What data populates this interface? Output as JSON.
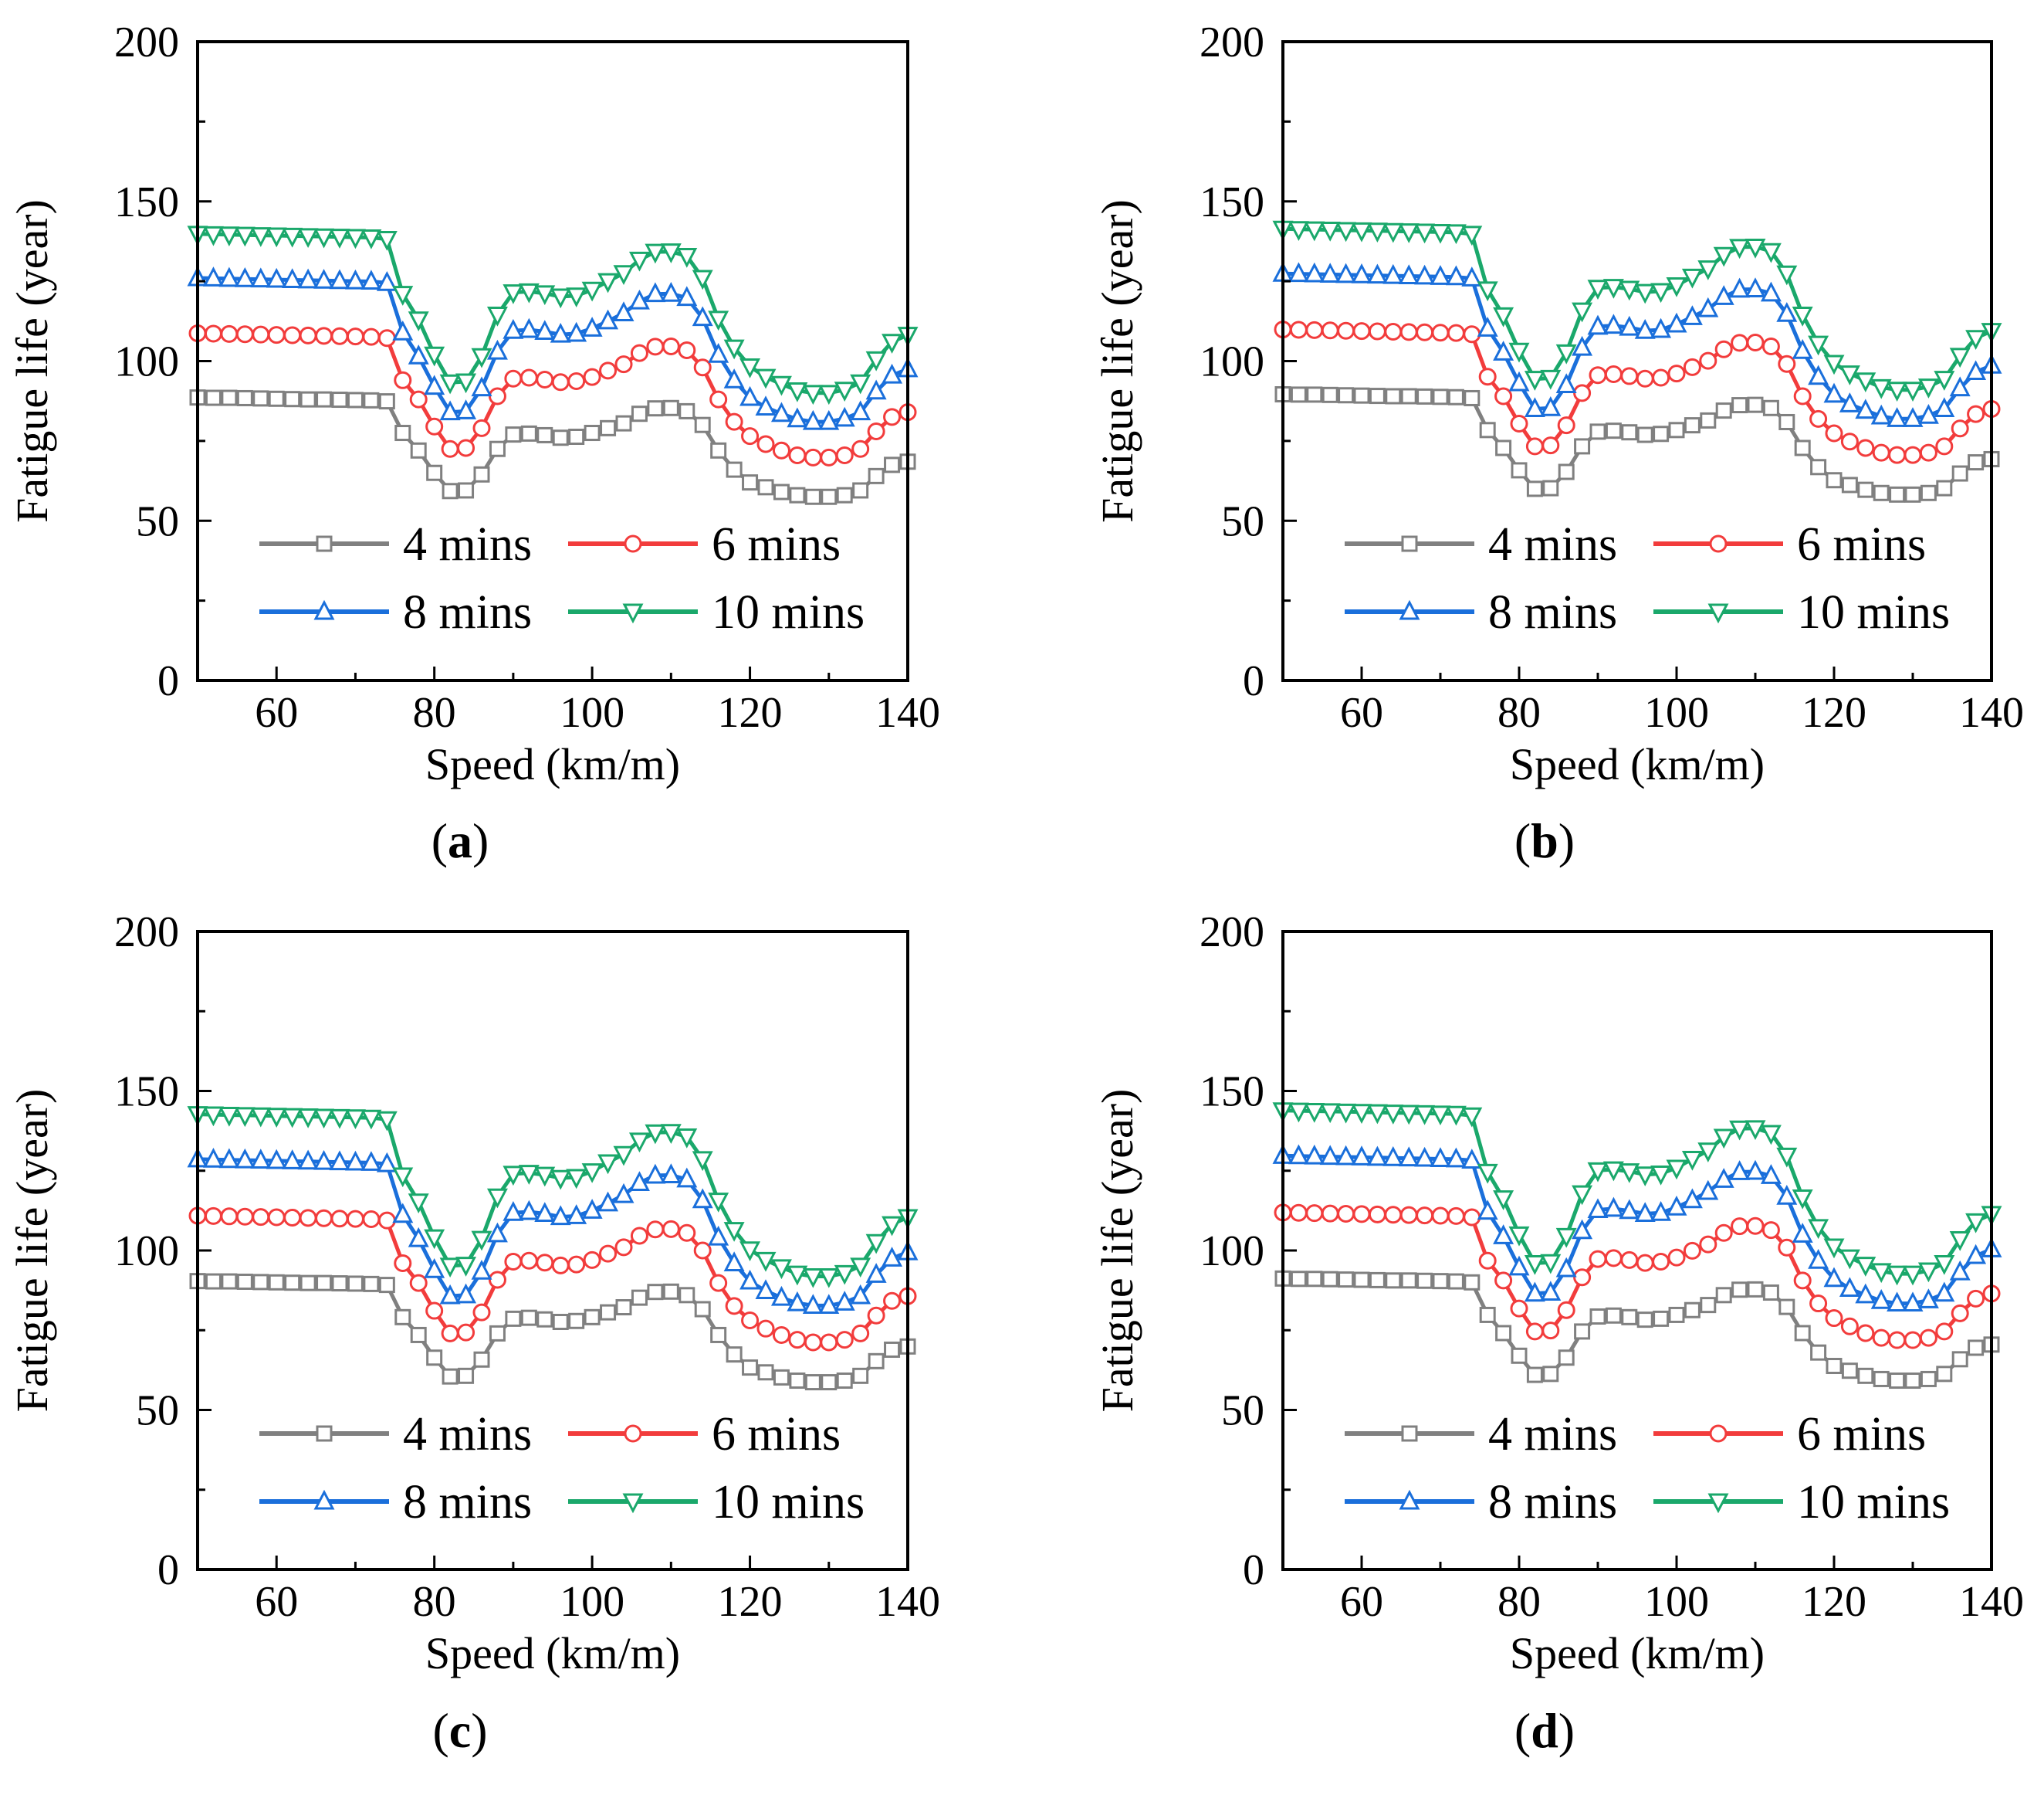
{
  "figure": {
    "legend_labels": [
      "4 mins",
      "6 mins",
      "8 mins",
      "10 mins"
    ],
    "series_colors": [
      "#808080",
      "#f23c3c",
      "#1a6fdb",
      "#1aa86b"
    ],
    "series_markers": [
      "square",
      "circle",
      "triangle-up",
      "triangle-down"
    ]
  },
  "chart_data": [
    {
      "panel": "a",
      "type": "line",
      "xlabel": "Speed (km/m)",
      "ylabel": "Fatigue life (year)",
      "xlim": [
        50,
        140
      ],
      "ylim": [
        0,
        200
      ],
      "xticks": [
        60,
        80,
        100,
        120,
        140
      ],
      "yticks": [
        0,
        50,
        100,
        150,
        200
      ],
      "legend_position": "lower-center",
      "x": [
        50,
        52,
        54,
        56,
        58,
        60,
        62,
        64,
        66,
        68,
        70,
        72,
        74,
        76,
        78,
        80,
        82,
        84,
        86,
        88,
        90,
        92,
        94,
        96,
        98,
        100,
        102,
        104,
        106,
        108,
        110,
        112,
        114,
        116,
        118,
        120,
        122,
        124,
        126,
        128,
        130,
        132,
        134,
        136,
        138,
        140
      ],
      "series": [
        {
          "name": "4 mins",
          "values": [
            88.6,
            88.5,
            88.5,
            88.4,
            88.3,
            88.2,
            88.1,
            88.0,
            88.0,
            87.9,
            87.8,
            87.7,
            87.4,
            77.5,
            72.0,
            65.0,
            59.3,
            59.5,
            64.5,
            72.5,
            77.0,
            77.3,
            76.8,
            76.0,
            76.3,
            77.5,
            79.0,
            80.5,
            83.5,
            85.2,
            85.3,
            84.3,
            80.0,
            72.0,
            66.0,
            62.0,
            60.5,
            59.0,
            58.0,
            57.5,
            57.5,
            58.0,
            59.5,
            64.0,
            67.5,
            68.5
          ]
        },
        {
          "name": "6 mins",
          "values": [
            108.7,
            108.6,
            108.5,
            108.4,
            108.3,
            108.2,
            108.1,
            108.0,
            107.9,
            107.8,
            107.7,
            107.6,
            107.2,
            94.0,
            88.0,
            79.5,
            72.5,
            72.8,
            79.0,
            89.0,
            94.5,
            94.8,
            94.2,
            93.4,
            93.7,
            95.0,
            97.0,
            99.0,
            102.5,
            104.5,
            104.6,
            103.4,
            98.0,
            88.0,
            81.0,
            76.5,
            74.0,
            72.0,
            70.5,
            69.8,
            69.8,
            70.5,
            72.5,
            78.0,
            82.5,
            84.0
          ]
        },
        {
          "name": "8 mins",
          "values": [
            126.0,
            125.9,
            125.8,
            125.7,
            125.6,
            125.5,
            125.4,
            125.3,
            125.2,
            125.1,
            125.0,
            124.9,
            124.5,
            109.0,
            101.5,
            92.0,
            84.0,
            84.3,
            91.5,
            103.0,
            109.5,
            109.8,
            109.2,
            108.3,
            108.6,
            110.2,
            112.5,
            115.0,
            118.7,
            121.0,
            121.1,
            119.8,
            113.5,
            102.0,
            94.0,
            88.5,
            85.5,
            83.5,
            81.8,
            81.0,
            81.0,
            82.0,
            84.0,
            90.5,
            95.5,
            97.5
          ]
        },
        {
          "name": "10 mins",
          "values": [
            139.8,
            139.7,
            139.6,
            139.5,
            139.4,
            139.3,
            139.2,
            139.1,
            139.0,
            138.9,
            138.8,
            138.7,
            138.2,
            121.0,
            113.0,
            102.0,
            93.3,
            93.6,
            101.5,
            114.5,
            121.5,
            121.8,
            121.2,
            120.2,
            120.5,
            122.3,
            125.0,
            127.5,
            131.7,
            134.2,
            134.3,
            132.9,
            126.0,
            113.2,
            104.2,
            98.3,
            95.0,
            92.8,
            90.8,
            90.0,
            90.0,
            91.0,
            93.3,
            100.5,
            106.0,
            108.2
          ]
        }
      ]
    },
    {
      "panel": "b",
      "type": "line",
      "xlabel": "Speed (km/m)",
      "ylabel": "Fatigue life (year)",
      "xlim": [
        50,
        140
      ],
      "ylim": [
        0,
        200
      ],
      "xticks": [
        60,
        80,
        100,
        120,
        140
      ],
      "yticks": [
        0,
        50,
        100,
        150,
        200
      ],
      "legend_position": "lower-center",
      "x": [
        50,
        52,
        54,
        56,
        58,
        60,
        62,
        64,
        66,
        68,
        70,
        72,
        74,
        76,
        78,
        80,
        82,
        84,
        86,
        88,
        90,
        92,
        94,
        96,
        98,
        100,
        102,
        104,
        106,
        108,
        110,
        112,
        114,
        116,
        118,
        120,
        122,
        124,
        126,
        128,
        130,
        132,
        134,
        136,
        138,
        140
      ],
      "series": [
        {
          "name": "4 mins",
          "values": [
            89.6,
            89.5,
            89.5,
            89.4,
            89.3,
            89.2,
            89.1,
            89.0,
            89.0,
            88.9,
            88.8,
            88.7,
            88.4,
            78.4,
            72.8,
            65.8,
            60.0,
            60.2,
            65.3,
            73.3,
            77.9,
            78.2,
            77.7,
            76.9,
            77.2,
            78.4,
            79.9,
            81.4,
            84.5,
            86.2,
            86.3,
            85.3,
            80.9,
            72.8,
            66.8,
            62.7,
            61.2,
            59.7,
            58.7,
            58.2,
            58.2,
            58.7,
            60.2,
            64.8,
            68.3,
            69.3
          ]
        },
        {
          "name": "6 mins",
          "values": [
            109.9,
            109.8,
            109.7,
            109.6,
            109.5,
            109.4,
            109.3,
            109.2,
            109.1,
            109.0,
            108.9,
            108.8,
            108.4,
            95.1,
            89.0,
            80.4,
            73.3,
            73.6,
            79.9,
            90.0,
            95.6,
            95.9,
            95.3,
            94.5,
            94.8,
            96.1,
            98.1,
            100.1,
            103.7,
            105.7,
            105.8,
            104.6,
            99.1,
            89.0,
            81.9,
            77.4,
            74.8,
            72.8,
            71.3,
            70.6,
            70.6,
            71.3,
            73.3,
            78.9,
            83.4,
            85.0
          ]
        },
        {
          "name": "8 mins",
          "values": [
            127.4,
            127.3,
            127.2,
            127.1,
            127.0,
            126.9,
            126.8,
            126.7,
            126.6,
            126.5,
            126.4,
            126.3,
            125.9,
            110.2,
            102.7,
            93.1,
            85.0,
            85.3,
            92.5,
            104.2,
            110.8,
            111.1,
            110.5,
            109.5,
            109.8,
            111.5,
            113.8,
            116.3,
            120.1,
            122.4,
            122.5,
            121.2,
            114.8,
            103.2,
            95.1,
            89.5,
            86.5,
            84.5,
            82.7,
            81.9,
            81.9,
            82.9,
            85.0,
            91.5,
            96.6,
            98.6
          ]
        },
        {
          "name": "10 mins",
          "values": [
            141.4,
            141.3,
            141.2,
            141.1,
            141.0,
            140.9,
            140.8,
            140.7,
            140.6,
            140.5,
            140.4,
            140.3,
            139.8,
            122.4,
            114.3,
            103.2,
            94.4,
            94.7,
            102.7,
            115.8,
            122.9,
            123.2,
            122.6,
            121.6,
            121.9,
            123.7,
            126.4,
            129.0,
            133.2,
            135.7,
            135.8,
            134.4,
            127.4,
            114.5,
            105.4,
            99.4,
            96.1,
            93.9,
            91.8,
            91.0,
            91.0,
            92.0,
            94.4,
            101.6,
            107.2,
            109.4
          ]
        }
      ]
    },
    {
      "panel": "c",
      "type": "line",
      "xlabel": "Speed (km/m)",
      "ylabel": "Fatigue life (year)",
      "xlim": [
        50,
        140
      ],
      "ylim": [
        0,
        200
      ],
      "xticks": [
        60,
        80,
        100,
        120,
        140
      ],
      "yticks": [
        0,
        50,
        100,
        150,
        200
      ],
      "legend_position": "lower-center",
      "x": [
        50,
        52,
        54,
        56,
        58,
        60,
        62,
        64,
        66,
        68,
        70,
        72,
        74,
        76,
        78,
        80,
        82,
        84,
        86,
        88,
        90,
        92,
        94,
        96,
        98,
        100,
        102,
        104,
        106,
        108,
        110,
        112,
        114,
        116,
        118,
        120,
        122,
        124,
        126,
        128,
        130,
        132,
        134,
        136,
        138,
        140
      ],
      "series": [
        {
          "name": "4 mins",
          "values": [
            90.4,
            90.3,
            90.3,
            90.2,
            90.1,
            90.0,
            89.9,
            89.8,
            89.8,
            89.7,
            89.6,
            89.5,
            89.2,
            79.1,
            73.5,
            66.4,
            60.5,
            60.7,
            65.8,
            74.0,
            78.6,
            78.9,
            78.4,
            77.6,
            77.9,
            79.1,
            80.6,
            82.2,
            85.2,
            87.0,
            87.1,
            86.0,
            81.6,
            73.5,
            67.4,
            63.3,
            61.8,
            60.2,
            59.2,
            58.7,
            58.7,
            59.2,
            60.7,
            65.3,
            68.9,
            69.9
          ]
        },
        {
          "name": "6 mins",
          "values": [
            110.9,
            110.8,
            110.7,
            110.6,
            110.5,
            110.4,
            110.3,
            110.2,
            110.1,
            110.0,
            109.9,
            109.8,
            109.4,
            96.0,
            89.8,
            81.1,
            74.0,
            74.3,
            80.6,
            90.8,
            96.5,
            96.8,
            96.2,
            95.3,
            95.6,
            97.0,
            99.0,
            101.0,
            104.6,
            106.6,
            106.7,
            105.5,
            100.0,
            89.8,
            82.6,
            78.1,
            75.5,
            73.5,
            72.0,
            71.2,
            71.2,
            72.0,
            74.0,
            79.6,
            84.2,
            85.7
          ]
        },
        {
          "name": "8 mins",
          "values": [
            128.6,
            128.5,
            128.4,
            128.3,
            128.2,
            128.1,
            128.0,
            127.9,
            127.8,
            127.7,
            127.6,
            127.5,
            127.1,
            111.2,
            103.6,
            93.9,
            85.7,
            86.0,
            93.4,
            105.1,
            111.8,
            112.1,
            111.5,
            110.5,
            110.8,
            112.5,
            114.8,
            117.4,
            121.2,
            123.5,
            123.6,
            122.3,
            115.8,
            104.1,
            96.0,
            90.3,
            87.3,
            85.2,
            83.5,
            82.7,
            82.7,
            83.7,
            85.7,
            92.4,
            97.5,
            99.5
          ]
        },
        {
          "name": "10 mins",
          "values": [
            142.7,
            142.6,
            142.5,
            142.4,
            142.3,
            142.2,
            142.1,
            142.0,
            141.9,
            141.8,
            141.7,
            141.6,
            141.1,
            123.5,
            115.3,
            104.1,
            95.2,
            95.5,
            103.6,
            116.9,
            124.0,
            124.3,
            123.7,
            122.7,
            123.0,
            124.8,
            127.6,
            130.2,
            134.4,
            137.0,
            137.1,
            135.7,
            128.6,
            115.6,
            106.4,
            100.3,
            97.0,
            94.7,
            92.7,
            91.9,
            91.9,
            92.9,
            95.2,
            102.6,
            108.2,
            110.4
          ]
        }
      ]
    },
    {
      "panel": "d",
      "type": "line",
      "xlabel": "Speed (km/m)",
      "ylabel": "Fatigue life (year)",
      "xlim": [
        50,
        140
      ],
      "ylim": [
        0,
        200
      ],
      "xticks": [
        60,
        80,
        100,
        120,
        140
      ],
      "yticks": [
        0,
        50,
        100,
        150,
        200
      ],
      "legend_position": "lower-center",
      "x": [
        50,
        52,
        54,
        56,
        58,
        60,
        62,
        64,
        66,
        68,
        70,
        72,
        74,
        76,
        78,
        80,
        82,
        84,
        86,
        88,
        90,
        92,
        94,
        96,
        98,
        100,
        102,
        104,
        106,
        108,
        110,
        112,
        114,
        116,
        118,
        120,
        122,
        124,
        126,
        128,
        130,
        132,
        134,
        136,
        138,
        140
      ],
      "series": [
        {
          "name": "4 mins",
          "values": [
            91.2,
            91.1,
            91.1,
            91.0,
            90.9,
            90.8,
            90.7,
            90.6,
            90.6,
            90.5,
            90.4,
            90.3,
            90.0,
            79.8,
            74.1,
            67.0,
            61.0,
            61.3,
            66.4,
            74.6,
            79.3,
            79.6,
            79.1,
            78.3,
            78.6,
            79.8,
            81.3,
            82.9,
            86.0,
            87.7,
            87.8,
            86.8,
            82.3,
            74.1,
            68.0,
            63.8,
            62.3,
            60.7,
            59.7,
            59.2,
            59.2,
            59.7,
            61.3,
            65.9,
            69.5,
            70.5
          ]
        },
        {
          "name": "6 mins",
          "values": [
            111.9,
            111.8,
            111.7,
            111.6,
            111.5,
            111.4,
            111.3,
            111.2,
            111.1,
            111.0,
            110.9,
            110.8,
            110.4,
            96.8,
            90.6,
            81.8,
            74.6,
            74.9,
            81.3,
            91.6,
            97.3,
            97.6,
            97.0,
            96.1,
            96.5,
            97.8,
            99.9,
            101.9,
            105.5,
            107.6,
            107.7,
            106.4,
            100.9,
            90.6,
            83.4,
            78.8,
            76.2,
            74.1,
            72.6,
            71.9,
            71.9,
            72.6,
            74.6,
            80.3,
            84.9,
            86.5
          ]
        },
        {
          "name": "8 mins",
          "values": [
            129.7,
            129.6,
            129.5,
            129.4,
            129.3,
            129.2,
            129.1,
            129.0,
            128.9,
            128.8,
            128.7,
            128.6,
            128.2,
            112.2,
            104.5,
            94.7,
            86.5,
            86.8,
            94.2,
            106.1,
            112.7,
            113.1,
            112.4,
            111.5,
            111.8,
            113.5,
            115.8,
            118.4,
            122.2,
            124.6,
            124.7,
            123.4,
            116.9,
            105.0,
            96.8,
            91.1,
            88.0,
            86.0,
            84.2,
            83.4,
            83.4,
            84.4,
            86.5,
            93.2,
            98.3,
            100.4
          ]
        },
        {
          "name": "10 mins",
          "values": [
            143.9,
            143.8,
            143.7,
            143.6,
            143.5,
            143.4,
            143.3,
            143.2,
            143.1,
            143.0,
            142.9,
            142.8,
            142.3,
            124.6,
            116.3,
            105.0,
            96.0,
            96.3,
            104.5,
            117.9,
            125.1,
            125.4,
            124.8,
            123.8,
            124.1,
            125.9,
            128.7,
            131.3,
            135.6,
            138.2,
            138.3,
            136.8,
            129.7,
            116.6,
            107.3,
            101.2,
            97.8,
            95.5,
            93.5,
            92.7,
            92.7,
            93.7,
            96.0,
            103.5,
            109.1,
            111.4
          ]
        }
      ]
    }
  ]
}
